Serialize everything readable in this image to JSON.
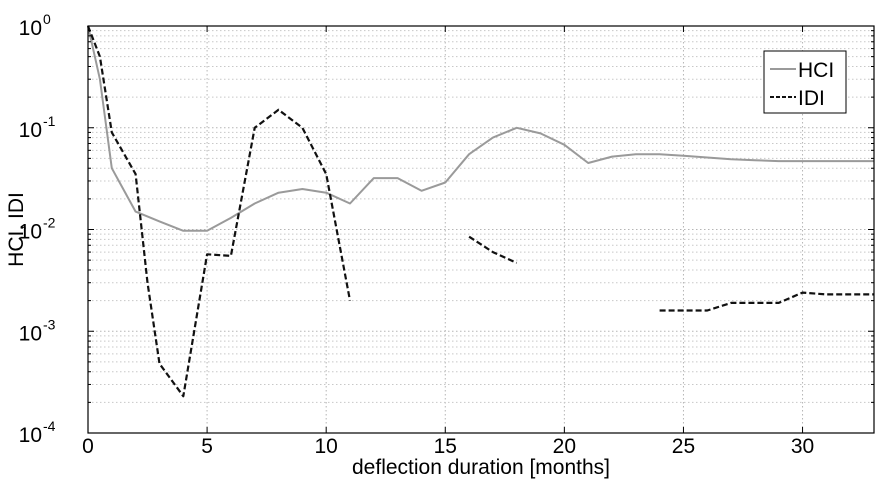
{
  "chart_data": {
    "type": "line",
    "xlabel": "deflection duration [months]",
    "ylabel": "HCI, IDI",
    "xlim": [
      0,
      33
    ],
    "ylim": [
      0.0001,
      1
    ],
    "yscale": "log",
    "grid": true,
    "legend_position": "top-right",
    "x_ticks": [
      0,
      5,
      10,
      15,
      20,
      25,
      30
    ],
    "x_tick_labels": [
      "0",
      "5",
      "10",
      "15",
      "20",
      "25",
      "30"
    ],
    "y_ticks": [
      0.0001,
      0.001,
      0.01,
      0.1,
      1
    ],
    "y_tick_labels": [
      {
        "base": "10",
        "exp": "-4"
      },
      {
        "base": "10",
        "exp": "-3"
      },
      {
        "base": "10",
        "exp": "-2"
      },
      {
        "base": "10",
        "exp": "-1"
      },
      {
        "base": "10",
        "exp": "0"
      }
    ],
    "series": [
      {
        "name": "HCI",
        "color": "#9a9a9a",
        "style": "solid",
        "segments": [
          [
            [
              0,
              1
            ],
            [
              0.5,
              0.3
            ],
            [
              1,
              0.04
            ],
            [
              2,
              0.015
            ],
            [
              3,
              0.012
            ],
            [
              4,
              0.0097
            ],
            [
              5,
              0.0097
            ],
            [
              6,
              0.013
            ],
            [
              7,
              0.018
            ],
            [
              8,
              0.023
            ],
            [
              9,
              0.025
            ],
            [
              10,
              0.023
            ],
            [
              11,
              0.018
            ],
            [
              12,
              0.032
            ],
            [
              13,
              0.032
            ],
            [
              14,
              0.024
            ],
            [
              15,
              0.029
            ],
            [
              16,
              0.055
            ],
            [
              17,
              0.08
            ],
            [
              18,
              0.1
            ],
            [
              19,
              0.088
            ],
            [
              20,
              0.068
            ],
            [
              21,
              0.045
            ],
            [
              22,
              0.052
            ],
            [
              23,
              0.055
            ],
            [
              24,
              0.055
            ],
            [
              25,
              0.053
            ],
            [
              26,
              0.051
            ],
            [
              27,
              0.049
            ],
            [
              28,
              0.048
            ],
            [
              29,
              0.047
            ],
            [
              30,
              0.047
            ],
            [
              31,
              0.047
            ],
            [
              32,
              0.047
            ],
            [
              33,
              0.047
            ]
          ]
        ]
      },
      {
        "name": "IDI",
        "color": "#111111",
        "style": "dashed",
        "segments": [
          [
            [
              0,
              1
            ],
            [
              0.5,
              0.5
            ],
            [
              1,
              0.09
            ],
            [
              2,
              0.035
            ],
            [
              2.5,
              0.003
            ],
            [
              3,
              0.00048
            ],
            [
              4,
              0.00023
            ],
            [
              5,
              0.0057
            ],
            [
              6,
              0.0055
            ],
            [
              7,
              0.1
            ],
            [
              8,
              0.15
            ],
            [
              9,
              0.1
            ],
            [
              10,
              0.035
            ],
            [
              11,
              0.002
            ]
          ],
          [
            [
              16,
              0.0085
            ],
            [
              17,
              0.006
            ],
            [
              18,
              0.0047
            ]
          ],
          [
            [
              24,
              0.0016
            ],
            [
              25,
              0.0016
            ],
            [
              26,
              0.0016
            ],
            [
              27,
              0.0019
            ],
            [
              28,
              0.0019
            ],
            [
              29,
              0.0019
            ],
            [
              30,
              0.0024
            ],
            [
              31,
              0.0023
            ],
            [
              32,
              0.0023
            ],
            [
              33,
              0.0023
            ]
          ]
        ]
      }
    ]
  }
}
